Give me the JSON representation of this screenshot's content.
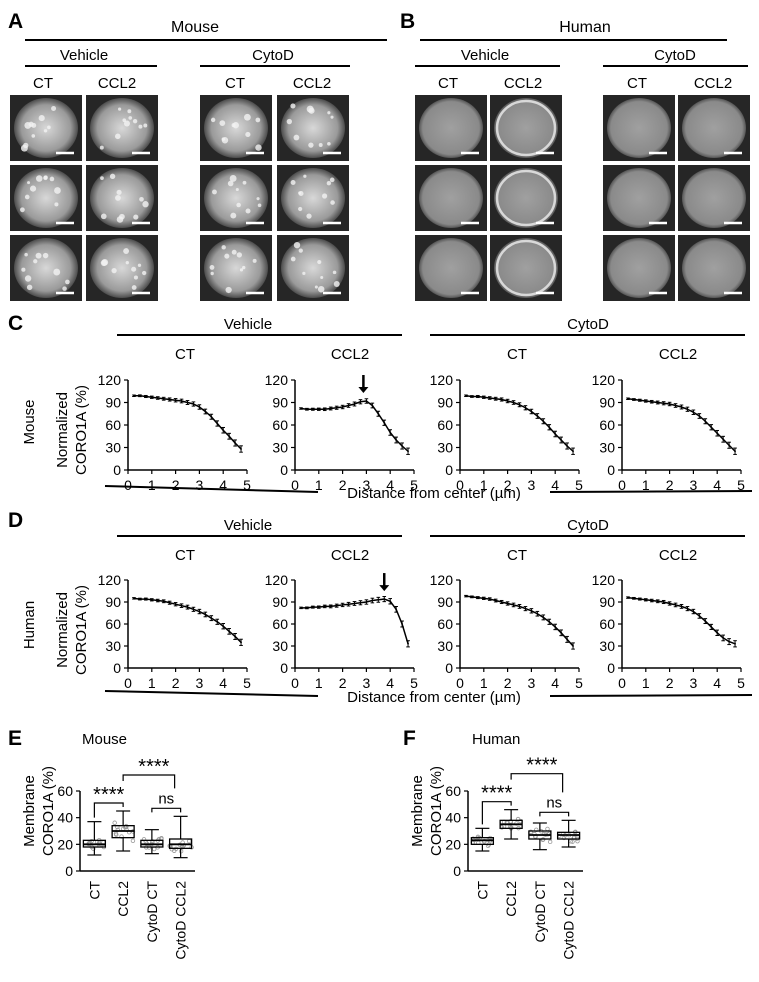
{
  "panels": {
    "A": {
      "letter": "A",
      "species": "Mouse"
    },
    "B": {
      "letter": "B",
      "species": "Human"
    },
    "C": {
      "letter": "C"
    },
    "D": {
      "letter": "D"
    },
    "E": {
      "letter": "E"
    },
    "F": {
      "letter": "F"
    }
  },
  "labels": {
    "vehicle": "Vehicle",
    "cytod": "CytoD",
    "ct": "CT",
    "ccl2": "CCL2",
    "mouse": "Mouse",
    "human": "Human",
    "ylabel_line1": "Normalized",
    "ylabel_line2": "CORO1A (%)",
    "xlabel": "Distance from center (µm)",
    "box_ylabel_line1": "Membrane",
    "box_ylabel_line2": "CORO1A (%)",
    "stars": "****",
    "ns": "ns"
  },
  "chart_data": [
    {
      "id": "C-vehicle-CT",
      "type": "line",
      "panel": "C",
      "ylim": [
        0,
        120
      ],
      "xlim": [
        0,
        5
      ],
      "x": [
        0.25,
        0.5,
        0.75,
        1,
        1.25,
        1.5,
        1.75,
        2,
        2.25,
        2.5,
        2.75,
        3,
        3.25,
        3.5,
        3.75,
        4,
        4.25,
        4.5,
        4.75
      ],
      "y": [
        99,
        99,
        98,
        97,
        96,
        95,
        94,
        93,
        92,
        90,
        88,
        84,
        78,
        71,
        62,
        53,
        45,
        36,
        28
      ]
    },
    {
      "id": "C-vehicle-CCL2",
      "type": "line",
      "panel": "C",
      "ylim": [
        0,
        120
      ],
      "xlim": [
        0,
        5
      ],
      "x": [
        0.25,
        0.5,
        0.75,
        1,
        1.25,
        1.5,
        1.75,
        2,
        2.25,
        2.5,
        2.75,
        3,
        3.25,
        3.5,
        3.75,
        4,
        4.25,
        4.5,
        4.75
      ],
      "y": [
        82,
        81,
        81,
        81,
        81,
        82,
        83,
        84,
        86,
        88,
        91,
        92,
        86,
        75,
        63,
        50,
        40,
        32,
        25
      ]
    },
    {
      "id": "C-cytod-CT",
      "type": "line",
      "panel": "C",
      "ylim": [
        0,
        120
      ],
      "xlim": [
        0,
        5
      ],
      "x": [
        0.25,
        0.5,
        0.75,
        1,
        1.25,
        1.5,
        1.75,
        2,
        2.25,
        2.5,
        2.75,
        3,
        3.25,
        3.5,
        3.75,
        4,
        4.25,
        4.5,
        4.75
      ],
      "y": [
        99,
        98,
        98,
        97,
        96,
        95,
        94,
        92,
        90,
        87,
        83,
        78,
        72,
        65,
        57,
        48,
        40,
        32,
        25
      ]
    },
    {
      "id": "C-cytod-CCL2",
      "type": "line",
      "panel": "C",
      "ylim": [
        0,
        120
      ],
      "xlim": [
        0,
        5
      ],
      "x": [
        0.25,
        0.5,
        0.75,
        1,
        1.25,
        1.5,
        1.75,
        2,
        2.25,
        2.5,
        2.75,
        3,
        3.25,
        3.5,
        3.75,
        4,
        4.25,
        4.5,
        4.75
      ],
      "y": [
        95,
        94,
        93,
        92,
        91,
        90,
        89,
        88,
        86,
        84,
        81,
        77,
        72,
        65,
        57,
        49,
        41,
        33,
        25
      ]
    },
    {
      "id": "D-vehicle-CT",
      "type": "line",
      "panel": "D",
      "ylim": [
        0,
        120
      ],
      "xlim": [
        0,
        5
      ],
      "x": [
        0.25,
        0.5,
        0.75,
        1,
        1.25,
        1.5,
        1.75,
        2,
        2.25,
        2.5,
        2.75,
        3,
        3.25,
        3.5,
        3.75,
        4,
        4.25,
        4.5,
        4.75
      ],
      "y": [
        95,
        94,
        94,
        93,
        92,
        91,
        89,
        87,
        85,
        83,
        80,
        77,
        73,
        68,
        63,
        57,
        50,
        43,
        35
      ]
    },
    {
      "id": "D-vehicle-CCL2",
      "type": "line",
      "panel": "D",
      "ylim": [
        0,
        120
      ],
      "xlim": [
        0,
        5
      ],
      "x": [
        0.25,
        0.5,
        0.75,
        1,
        1.25,
        1.5,
        1.75,
        2,
        2.25,
        2.5,
        2.75,
        3,
        3.25,
        3.5,
        3.75,
        4,
        4.25,
        4.5,
        4.75
      ],
      "y": [
        82,
        82,
        83,
        83,
        84,
        84,
        85,
        86,
        87,
        88,
        89,
        90,
        92,
        93,
        94,
        91,
        80,
        60,
        33
      ]
    },
    {
      "id": "D-cytod-CT",
      "type": "line",
      "panel": "D",
      "ylim": [
        0,
        120
      ],
      "xlim": [
        0,
        5
      ],
      "x": [
        0.25,
        0.5,
        0.75,
        1,
        1.25,
        1.5,
        1.75,
        2,
        2.25,
        2.5,
        2.75,
        3,
        3.25,
        3.5,
        3.75,
        4,
        4.25,
        4.5,
        4.75
      ],
      "y": [
        98,
        97,
        96,
        95,
        94,
        92,
        90,
        88,
        86,
        84,
        81,
        78,
        74,
        69,
        63,
        56,
        48,
        39,
        30
      ]
    },
    {
      "id": "D-cytod-CCL2",
      "type": "line",
      "panel": "D",
      "ylim": [
        0,
        120
      ],
      "xlim": [
        0,
        5
      ],
      "x": [
        0.25,
        0.5,
        0.75,
        1,
        1.25,
        1.5,
        1.75,
        2,
        2.25,
        2.5,
        2.75,
        3,
        3.25,
        3.5,
        3.75,
        4,
        4.25,
        4.5,
        4.75
      ],
      "y": [
        96,
        95,
        94,
        93,
        92,
        91,
        90,
        88,
        86,
        84,
        81,
        77,
        71,
        64,
        56,
        48,
        41,
        36,
        33
      ]
    },
    {
      "id": "E",
      "type": "box",
      "panel": "E",
      "ylim": [
        0,
        60
      ],
      "yticks": [
        0,
        20,
        40,
        60
      ],
      "categories": [
        "CT",
        "CCL2",
        "CytoD CT",
        "CytoD CCL2"
      ],
      "boxes": [
        {
          "min": 12,
          "q1": 18,
          "median": 20,
          "q3": 23,
          "max": 37
        },
        {
          "min": 15,
          "q1": 25,
          "median": 30,
          "q3": 34,
          "max": 45
        },
        {
          "min": 13,
          "q1": 18,
          "median": 20,
          "q3": 23,
          "max": 31
        },
        {
          "min": 10,
          "q1": 17,
          "median": 20,
          "q3": 24,
          "max": 41
        }
      ]
    },
    {
      "id": "F",
      "type": "box",
      "panel": "F",
      "ylim": [
        0,
        60
      ],
      "yticks": [
        0,
        20,
        40,
        60
      ],
      "categories": [
        "CT",
        "CCL2",
        "CytoD CT",
        "CytoD CCL2"
      ],
      "boxes": [
        {
          "min": 15,
          "q1": 20,
          "median": 23,
          "q3": 25,
          "max": 32
        },
        {
          "min": 24,
          "q1": 32,
          "median": 35,
          "q3": 38,
          "max": 46
        },
        {
          "min": 16,
          "q1": 24,
          "median": 27,
          "q3": 30,
          "max": 36
        },
        {
          "min": 18,
          "q1": 24,
          "median": 27,
          "q3": 29,
          "max": 38
        }
      ]
    }
  ]
}
